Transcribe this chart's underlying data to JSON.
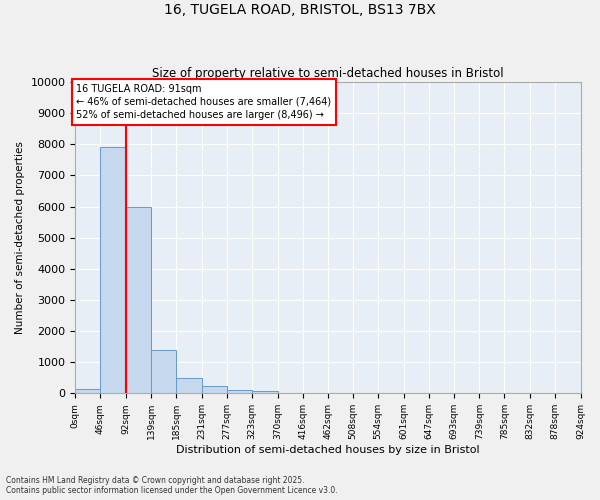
{
  "title1": "16, TUGELA ROAD, BRISTOL, BS13 7BX",
  "title2": "Size of property relative to semi-detached houses in Bristol",
  "xlabel": "Distribution of semi-detached houses by size in Bristol",
  "ylabel": "Number of semi-detached properties",
  "bar_color": "#c5d8ed",
  "bar_edge_color": "#6699cc",
  "background_color": "#e8eef5",
  "grid_color": "#ffffff",
  "property_label": "16 TUGELA ROAD: 91sqm",
  "smaller_pct": "46%",
  "smaller_count": "7,464",
  "larger_pct": "52%",
  "larger_count": "8,496",
  "bin_edges": [
    0,
    46,
    92,
    139,
    185,
    231,
    277,
    323,
    370,
    416,
    462,
    508,
    554,
    601,
    647,
    693,
    739,
    785,
    832,
    878,
    924
  ],
  "bin_counts": [
    130,
    7900,
    6000,
    1400,
    490,
    220,
    110,
    70,
    10,
    0,
    0,
    0,
    0,
    0,
    0,
    0,
    0,
    0,
    0,
    0
  ],
  "red_line_x": 92,
  "footer1": "Contains HM Land Registry data © Crown copyright and database right 2025.",
  "footer2": "Contains public sector information licensed under the Open Government Licence v3.0.",
  "ylim": [
    0,
    10000
  ],
  "yticks": [
    0,
    1000,
    2000,
    3000,
    4000,
    5000,
    6000,
    7000,
    8000,
    9000,
    10000
  ],
  "fig_width": 6.0,
  "fig_height": 5.0,
  "fig_dpi": 100
}
